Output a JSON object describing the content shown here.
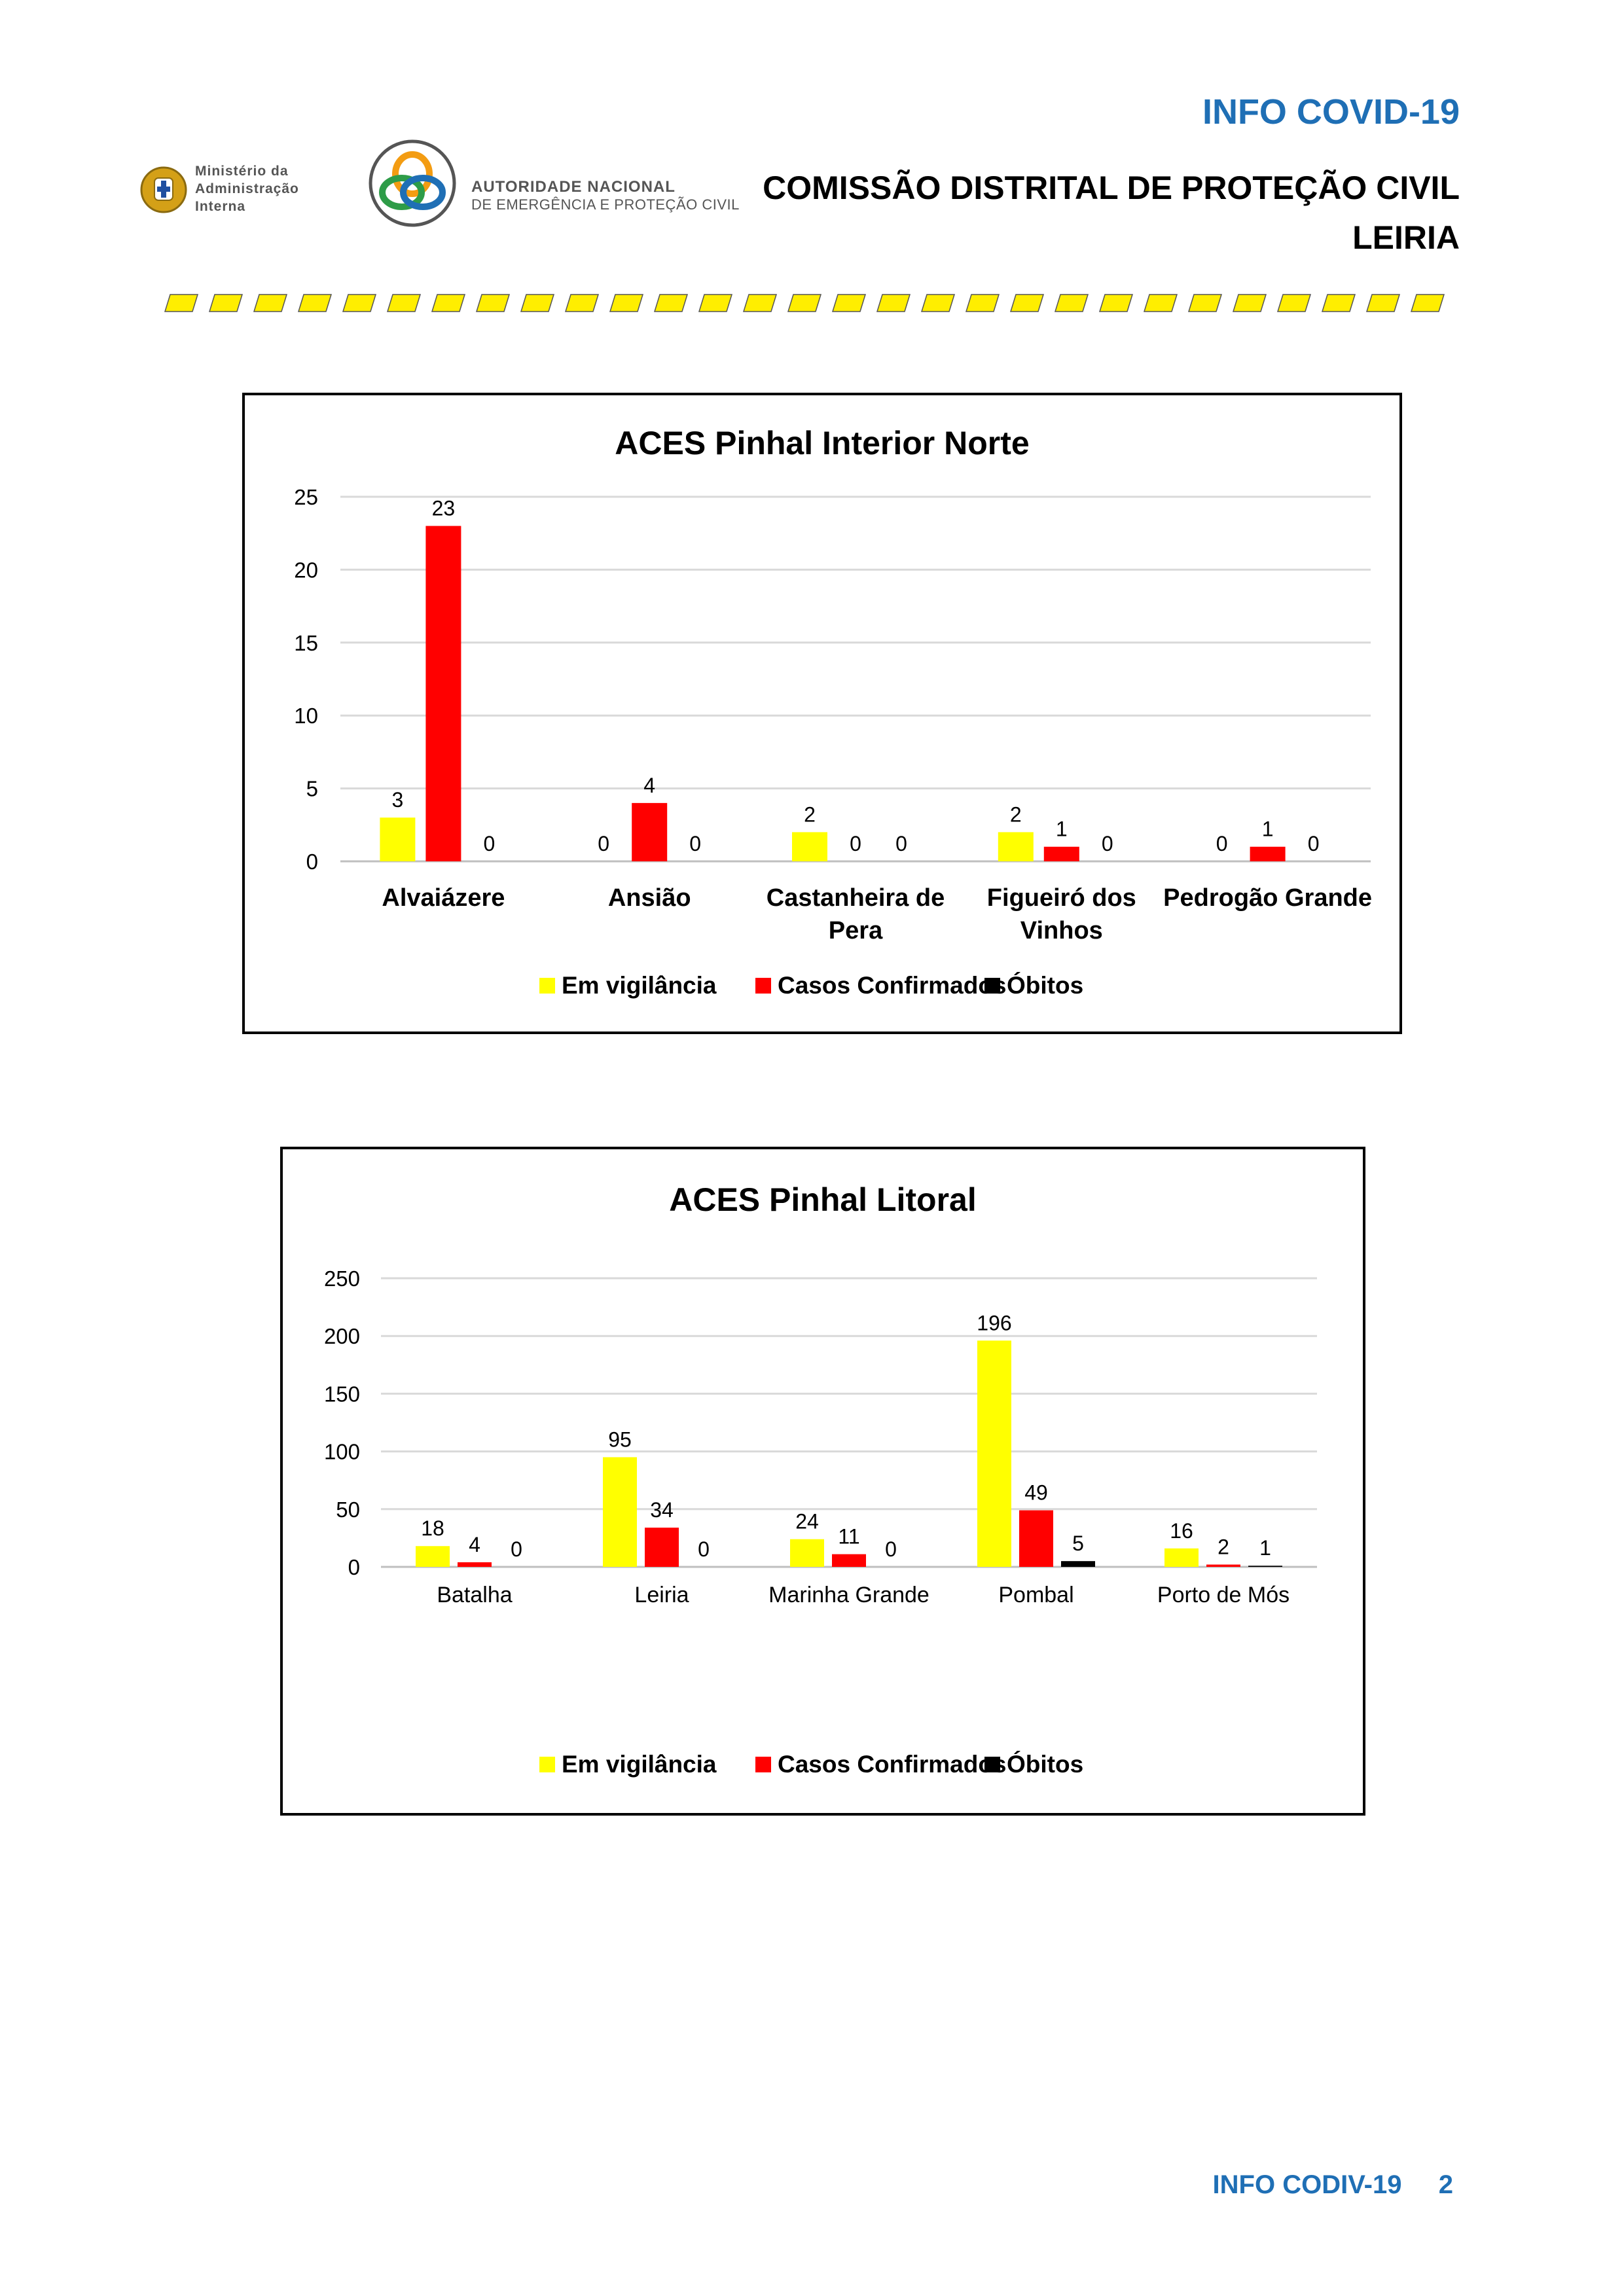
{
  "header": {
    "info_title": "INFO COVID-19",
    "commission": "COMISSÃO DISTRITAL DE PROTEÇÃO CIVIL",
    "district": "LEIRIA",
    "mai_logo_lines": [
      "Ministério da",
      "Administração",
      "Interna"
    ],
    "anepc_logo_line1": "AUTORIDADE NACIONAL",
    "anepc_logo_line2": "DE EMERGÊNCIA E PROTEÇÃO CIVIL"
  },
  "colors": {
    "em_vigilancia": "#ffff00",
    "casos_confirmados": "#ff0000",
    "obitos": "#000000",
    "accent_blue": "#1f6fb5",
    "stripe_yellow": "#ffee00"
  },
  "chart_data": [
    {
      "type": "bar",
      "title": "ACES Pinhal Interior Norte",
      "categories": [
        [
          "Alvaiázere"
        ],
        [
          "Ansião"
        ],
        [
          "Castanheira de",
          "Pera"
        ],
        [
          "Figueiró dos",
          "Vinhos"
        ],
        [
          "Pedrogão Grande"
        ]
      ],
      "series": [
        {
          "name": "Em vigilância",
          "values": [
            3,
            0,
            2,
            2,
            0
          ]
        },
        {
          "name": "Casos Confirmados",
          "values": [
            23,
            4,
            0,
            1,
            1
          ]
        },
        {
          "name": "Óbitos",
          "values": [
            0,
            0,
            0,
            0,
            0
          ]
        }
      ],
      "yticks": [
        0,
        5,
        10,
        15,
        20,
        25
      ],
      "ylim": [
        0,
        25
      ],
      "grid": true,
      "legend": "bottom",
      "category_bold": true
    },
    {
      "type": "bar",
      "title": "ACES Pinhal Litoral",
      "categories": [
        [
          "Batalha"
        ],
        [
          "Leiria"
        ],
        [
          "Marinha Grande"
        ],
        [
          "Pombal"
        ],
        [
          "Porto de Mós"
        ]
      ],
      "series": [
        {
          "name": "Em vigilância",
          "values": [
            18,
            95,
            24,
            196,
            16
          ]
        },
        {
          "name": "Casos Confirmados",
          "values": [
            4,
            34,
            11,
            49,
            2
          ]
        },
        {
          "name": "Óbitos",
          "values": [
            0,
            0,
            0,
            5,
            1
          ]
        }
      ],
      "yticks": [
        0,
        50,
        100,
        150,
        200,
        250
      ],
      "ylim": [
        0,
        250
      ],
      "grid": true,
      "legend": "bottom",
      "category_bold": false
    }
  ],
  "footer": {
    "label": "INFO CODIV-19",
    "page": "2"
  }
}
